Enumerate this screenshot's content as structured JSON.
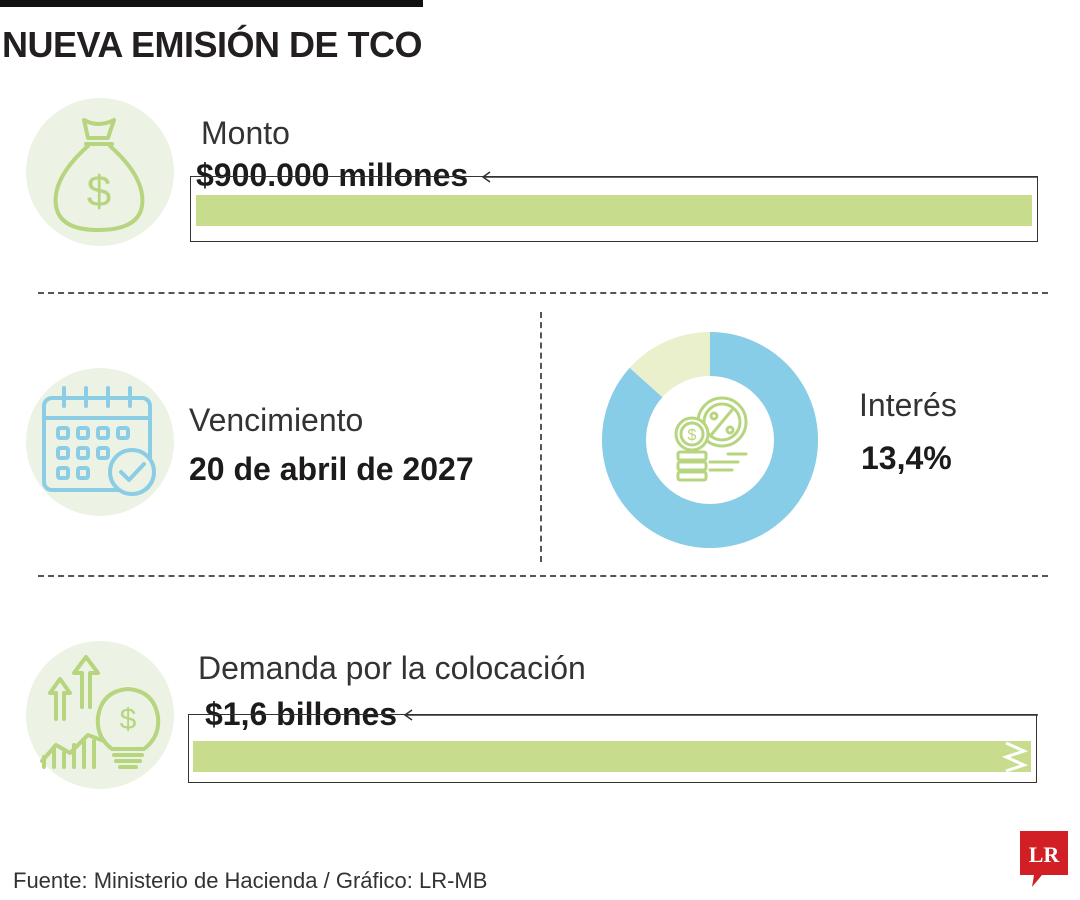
{
  "header": {
    "title": "NUEVA EMISIÓN DE TCO"
  },
  "monto": {
    "label": "Monto",
    "value": "$900.000 millones",
    "icon": "money-bag-icon"
  },
  "vencimiento": {
    "label": "Vencimiento",
    "value": "20 de abril de 2027",
    "icon": "calendar-check-icon"
  },
  "interes": {
    "label": "Interés",
    "value": "13,4%",
    "icon": "coins-percent-icon",
    "share": 0.134
  },
  "demanda": {
    "label": "Demanda por la colocación",
    "value": "$1,6 billones",
    "icon": "growth-bulb-icon"
  },
  "footer": {
    "source": "Fuente: Ministerio de Hacienda / Gráfico: LR-MB"
  },
  "brand": {
    "logo_text": "LR",
    "logo_color": "#d21f26"
  },
  "colors": {
    "bar": "#c8dc8e",
    "donut_main": "#87cde7",
    "donut_rest": "#eaf0cc",
    "icon_green": "#b7d47f",
    "icon_blue": "#8ccde6"
  }
}
